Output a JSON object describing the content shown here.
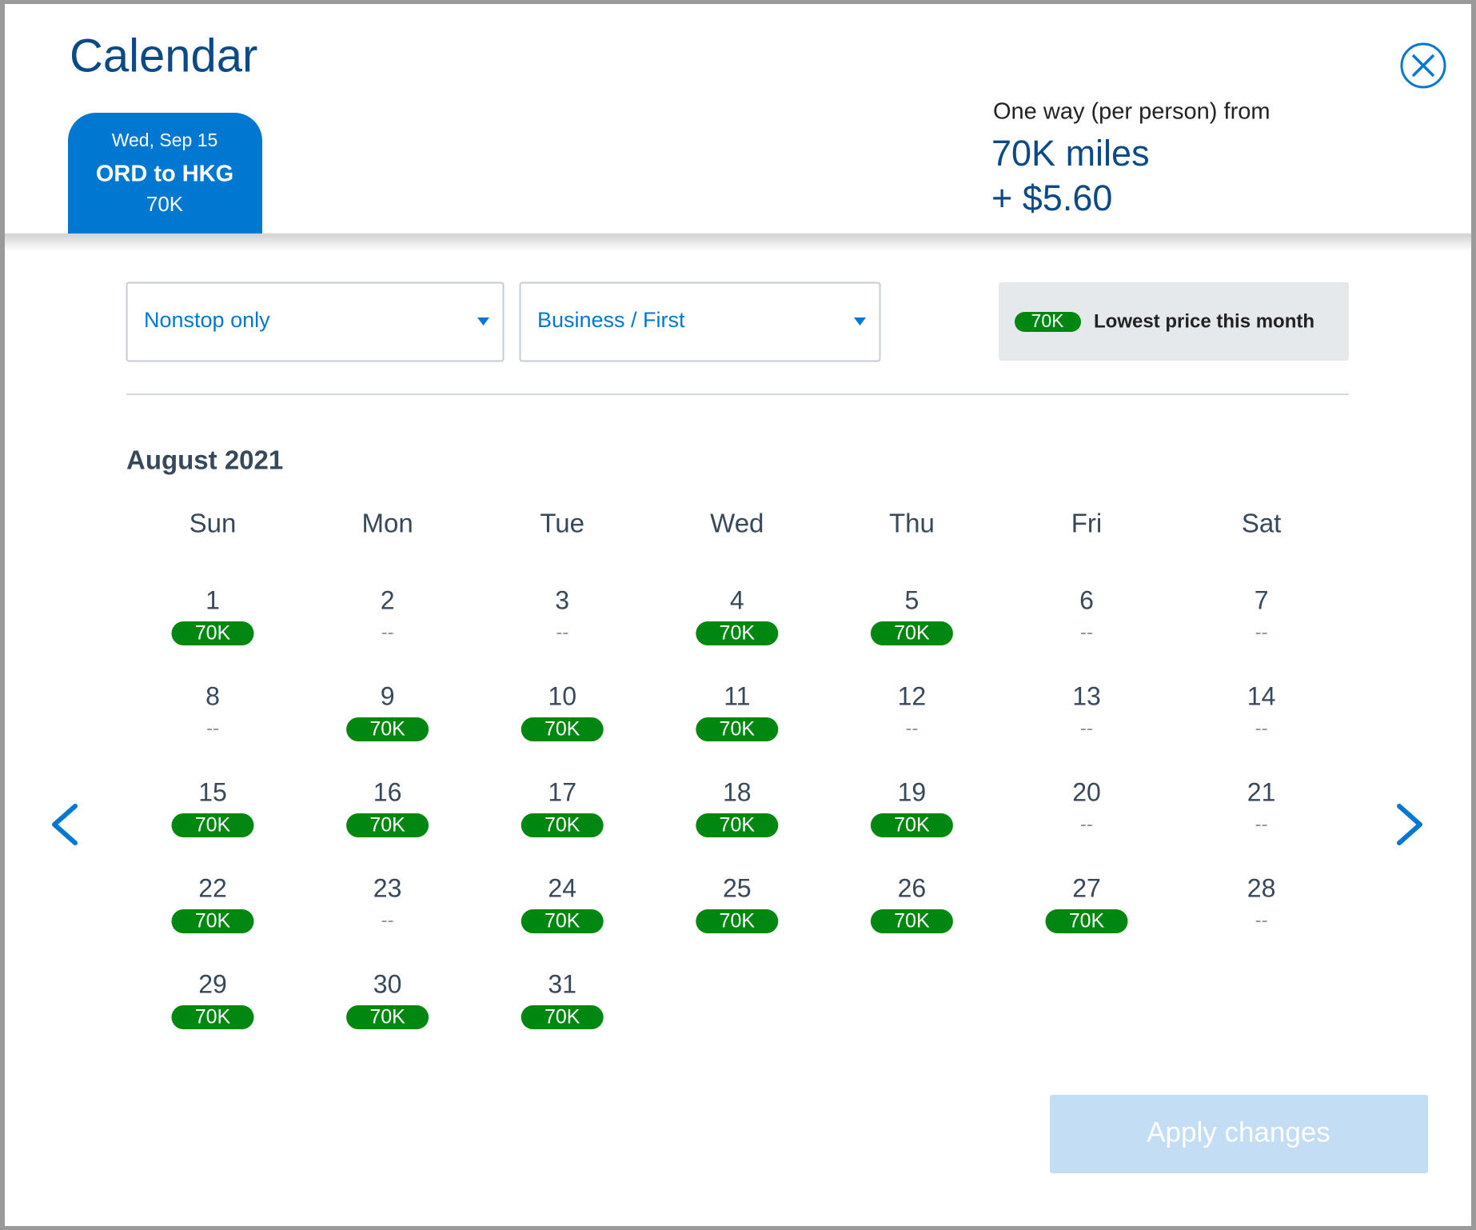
{
  "header": {
    "title": "Calendar"
  },
  "tab": {
    "date": "Wed, Sep 15",
    "route": "ORD to HKG",
    "price": "70K"
  },
  "summary": {
    "label": "One way (per person) from",
    "miles": "70K miles",
    "fee": "+ $5.60"
  },
  "filters": [
    "Nonstop only",
    "Business / First"
  ],
  "legend": {
    "badge": "70K",
    "text": "Lowest price this month"
  },
  "month": "August 2021",
  "weekdays": [
    "Sun",
    "Mon",
    "Tue",
    "Wed",
    "Thu",
    "Fri",
    "Sat"
  ],
  "days": [
    {
      "day": 1,
      "price": "70K"
    },
    {
      "day": 2,
      "price": "--"
    },
    {
      "day": 3,
      "price": "--"
    },
    {
      "day": 4,
      "price": "70K"
    },
    {
      "day": 5,
      "price": "70K"
    },
    {
      "day": 6,
      "price": "--"
    },
    {
      "day": 7,
      "price": "--"
    },
    {
      "day": 8,
      "price": "--"
    },
    {
      "day": 9,
      "price": "70K"
    },
    {
      "day": 10,
      "price": "70K"
    },
    {
      "day": 11,
      "price": "70K"
    },
    {
      "day": 12,
      "price": "--"
    },
    {
      "day": 13,
      "price": "--"
    },
    {
      "day": 14,
      "price": "--"
    },
    {
      "day": 15,
      "price": "70K"
    },
    {
      "day": 16,
      "price": "70K"
    },
    {
      "day": 17,
      "price": "70K"
    },
    {
      "day": 18,
      "price": "70K"
    },
    {
      "day": 19,
      "price": "70K"
    },
    {
      "day": 20,
      "price": "--"
    },
    {
      "day": 21,
      "price": "--"
    },
    {
      "day": 22,
      "price": "70K"
    },
    {
      "day": 23,
      "price": "--"
    },
    {
      "day": 24,
      "price": "70K"
    },
    {
      "day": 25,
      "price": "70K"
    },
    {
      "day": 26,
      "price": "70K"
    },
    {
      "day": 27,
      "price": "70K"
    },
    {
      "day": 28,
      "price": "--"
    },
    {
      "day": 29,
      "price": "70K"
    },
    {
      "day": 30,
      "price": "70K"
    },
    {
      "day": 31,
      "price": "70K"
    }
  ],
  "button": "Apply changes"
}
